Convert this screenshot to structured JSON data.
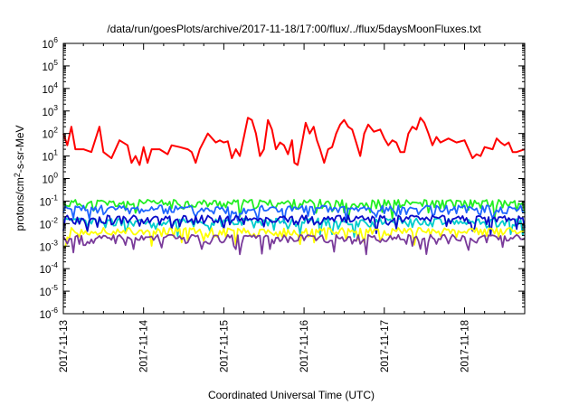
{
  "chart_data": {
    "type": "line",
    "title": "/data/run/goesPlots/archive/2017-11-18/17:00/flux/../flux/5daysMoonFluxes.txt",
    "xlabel": "Coordinated Universal Time (UTC)",
    "ylabel": "protons/cm²-s-sr-MeV",
    "ylabel_parts": {
      "main": "protons/cm",
      "sup": "2",
      "rest": "-s-sr-MeV"
    },
    "log_y": true,
    "ylim": [
      1e-06,
      1000000.0
    ],
    "xlim_days": [
      0,
      5.75
    ],
    "x_ticks": [
      "2017-11-13",
      "2017-11-14",
      "2017-11-15",
      "2017-11-16",
      "2017-11-17",
      "2017-11-18"
    ],
    "y_tick_exponents": [
      -6,
      -5,
      -4,
      -3,
      -2,
      -1,
      0,
      1,
      2,
      3,
      4,
      5,
      6
    ],
    "y_tick_base": "10",
    "grid": false,
    "legend": "none",
    "series": [
      {
        "color": "#ff0000",
        "points": [
          [
            0.0,
            100
          ],
          [
            0.05,
            30
          ],
          [
            0.1,
            200
          ],
          [
            0.15,
            20
          ],
          [
            0.25,
            20
          ],
          [
            0.35,
            15
          ],
          [
            0.45,
            200
          ],
          [
            0.5,
            15
          ],
          [
            0.6,
            8
          ],
          [
            0.7,
            50
          ],
          [
            0.8,
            30
          ],
          [
            0.85,
            5
          ],
          [
            0.9,
            10
          ],
          [
            0.95,
            4
          ],
          [
            1.0,
            25
          ],
          [
            1.05,
            5
          ],
          [
            1.1,
            20
          ],
          [
            1.2,
            20
          ],
          [
            1.3,
            12
          ],
          [
            1.35,
            30
          ],
          [
            1.45,
            25
          ],
          [
            1.55,
            20
          ],
          [
            1.6,
            15
          ],
          [
            1.65,
            5
          ],
          [
            1.7,
            20
          ],
          [
            1.8,
            100
          ],
          [
            1.9,
            40
          ],
          [
            1.95,
            50
          ],
          [
            2.0,
            40
          ],
          [
            2.05,
            45
          ],
          [
            2.1,
            8
          ],
          [
            2.15,
            20
          ],
          [
            2.2,
            10
          ],
          [
            2.25,
            70
          ],
          [
            2.3,
            500
          ],
          [
            2.35,
            400
          ],
          [
            2.4,
            100
          ],
          [
            2.45,
            10
          ],
          [
            2.5,
            20
          ],
          [
            2.55,
            400
          ],
          [
            2.6,
            150
          ],
          [
            2.65,
            20
          ],
          [
            2.7,
            40
          ],
          [
            2.75,
            30
          ],
          [
            2.8,
            12
          ],
          [
            2.85,
            50
          ],
          [
            2.88,
            5
          ],
          [
            2.92,
            4
          ],
          [
            2.97,
            30
          ],
          [
            3.02,
            300
          ],
          [
            3.07,
            100
          ],
          [
            3.12,
            200
          ],
          [
            3.16,
            50
          ],
          [
            3.2,
            20
          ],
          [
            3.25,
            5
          ],
          [
            3.3,
            20
          ],
          [
            3.35,
            25
          ],
          [
            3.4,
            100
          ],
          [
            3.45,
            250
          ],
          [
            3.5,
            400
          ],
          [
            3.55,
            200
          ],
          [
            3.6,
            150
          ],
          [
            3.65,
            40
          ],
          [
            3.7,
            10
          ],
          [
            3.75,
            100
          ],
          [
            3.8,
            250
          ],
          [
            3.87,
            120
          ],
          [
            3.95,
            150
          ],
          [
            4.0,
            60
          ],
          [
            4.05,
            30
          ],
          [
            4.1,
            50
          ],
          [
            4.15,
            40
          ],
          [
            4.2,
            15
          ],
          [
            4.25,
            15
          ],
          [
            4.3,
            100
          ],
          [
            4.35,
            200
          ],
          [
            4.4,
            150
          ],
          [
            4.45,
            500
          ],
          [
            4.5,
            300
          ],
          [
            4.55,
            100
          ],
          [
            4.6,
            30
          ],
          [
            4.65,
            70
          ],
          [
            4.7,
            40
          ],
          [
            4.8,
            60
          ],
          [
            4.9,
            40
          ],
          [
            5.0,
            50
          ],
          [
            5.05,
            20
          ],
          [
            5.1,
            8
          ],
          [
            5.15,
            12
          ],
          [
            5.2,
            10
          ],
          [
            5.25,
            25
          ],
          [
            5.35,
            20
          ],
          [
            5.4,
            60
          ],
          [
            5.45,
            40
          ],
          [
            5.5,
            30
          ],
          [
            5.55,
            40
          ],
          [
            5.6,
            15
          ],
          [
            5.65,
            15
          ],
          [
            5.75,
            20
          ]
        ]
      },
      {
        "color": "#22ee22",
        "base": 0.08,
        "seed": 11
      },
      {
        "color": "#1e64ff",
        "base": 0.045,
        "seed": 23
      },
      {
        "color": "#00cccc",
        "base": 0.012,
        "seed": 37
      },
      {
        "color": "#0a0ac8",
        "base": 0.016,
        "seed": 53
      },
      {
        "color": "#ffff00",
        "base": 0.0045,
        "seed": 71
      },
      {
        "color": "#7a3b9a",
        "base": 0.0022,
        "seed": 89
      }
    ]
  }
}
